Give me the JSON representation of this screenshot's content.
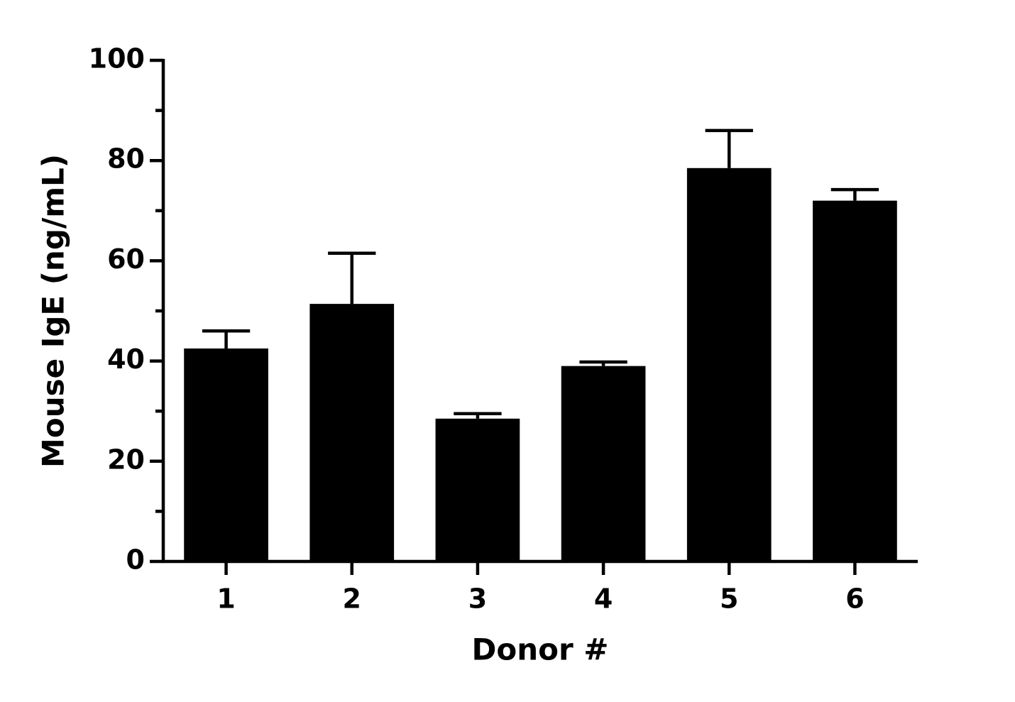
{
  "chart_data": {
    "type": "bar",
    "xlabel": "Donor #",
    "ylabel": "Mouse IgE (ng/mL)",
    "categories": [
      "1",
      "2",
      "3",
      "4",
      "5",
      "6"
    ],
    "values": [
      42.5,
      51.4,
      28.5,
      39.0,
      78.5,
      72.0
    ],
    "errors": [
      3.5,
      10.1,
      1.0,
      0.8,
      7.5,
      2.2
    ],
    "color": "#000000",
    "ylim": [
      0,
      100
    ],
    "yticks": [
      0,
      20,
      40,
      60,
      80,
      100
    ],
    "yminorticks": [
      10,
      30,
      50,
      70,
      90
    ],
    "grid": false
  }
}
